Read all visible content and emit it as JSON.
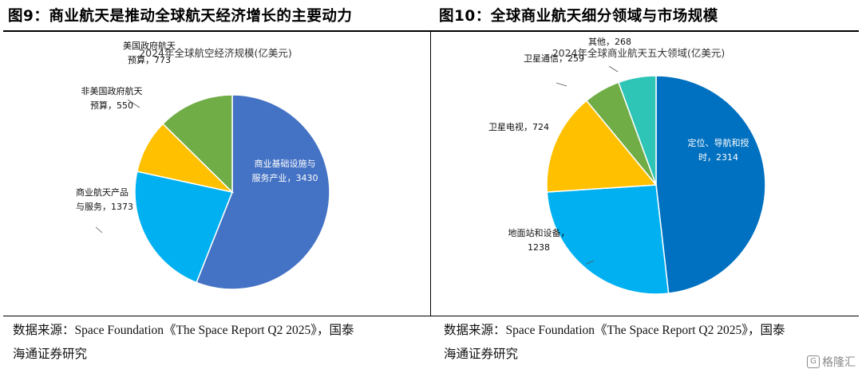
{
  "left_panel": {
    "figure_title": "图9：商业航天是推动全球航天经济增长的主要动力",
    "source_line1": "数据来源：Space Foundation《The Space Report Q2 2025》，国泰",
    "source_line2": "海通证券研究"
  },
  "right_panel": {
    "figure_title": "图10：全球商业航天细分领域与市场规模",
    "source_line1": "数据来源：Space Foundation《The Space Report Q2 2025》，国泰",
    "source_line2": "海通证券研究"
  },
  "watermark": {
    "text": "格隆汇",
    "icon": "gelonghui-logo-icon"
  },
  "chart_data": [
    {
      "type": "pie",
      "title": "2024年全球航空经济规模(亿美元)",
      "slices": [
        {
          "label_lines": [
            "商业基础设施与",
            "服务产业，3430"
          ],
          "value": 3430,
          "color": "#4472C4"
        },
        {
          "label_lines": [
            "商业航天产品",
            "与服务，1373"
          ],
          "value": 1373,
          "color": "#00B0F0"
        },
        {
          "label_lines": [
            "非美国政府航天",
            "预算，550"
          ],
          "value": 550,
          "color": "#FFC000"
        },
        {
          "label_lines": [
            "美国政府航天",
            "预算，773"
          ],
          "value": 773,
          "color": "#70AD47"
        }
      ]
    },
    {
      "type": "pie",
      "title": "2024年全球商业航天五大领域(亿美元)",
      "slices": [
        {
          "label_lines": [
            "定位、导航和授",
            "时，2314"
          ],
          "value": 2314,
          "color": "#0070C0"
        },
        {
          "label_lines": [
            "地面站和设备，",
            "1238"
          ],
          "value": 1238,
          "color": "#00B0F0"
        },
        {
          "label_lines": [
            "卫星电视，724"
          ],
          "value": 724,
          "color": "#FFC000"
        },
        {
          "label_lines": [
            "卫星通信，259"
          ],
          "value": 259,
          "color": "#70AD47"
        },
        {
          "label_lines": [
            "其他，268"
          ],
          "value": 268,
          "color": "#2EC4B6"
        }
      ]
    }
  ]
}
